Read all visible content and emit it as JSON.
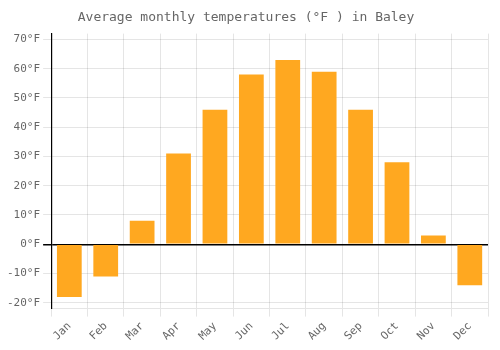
{
  "chart_data": {
    "type": "bar",
    "title": "Average monthly temperatures (°F ) in Baley",
    "categories": [
      "Jan",
      "Feb",
      "Mar",
      "Apr",
      "May",
      "Jun",
      "Jul",
      "Aug",
      "Sep",
      "Oct",
      "Nov",
      "Dec"
    ],
    "values": [
      -18,
      -11,
      8,
      31,
      46,
      58,
      63,
      59,
      46,
      28,
      3,
      -14
    ],
    "color": "#FFA820",
    "ylim": [
      -22,
      72
    ],
    "yticks": [
      {
        "value": -20,
        "label": "-20°F"
      },
      {
        "value": -10,
        "label": "-10°F"
      },
      {
        "value": 0,
        "label": "0°F"
      },
      {
        "value": 10,
        "label": "10°F"
      },
      {
        "value": 20,
        "label": "20°F"
      },
      {
        "value": 30,
        "label": "30°F"
      },
      {
        "value": 40,
        "label": "40°F"
      },
      {
        "value": 50,
        "label": "50°F"
      },
      {
        "value": 60,
        "label": "60°F"
      },
      {
        "value": 70,
        "label": "70°F"
      }
    ],
    "grid": true
  }
}
